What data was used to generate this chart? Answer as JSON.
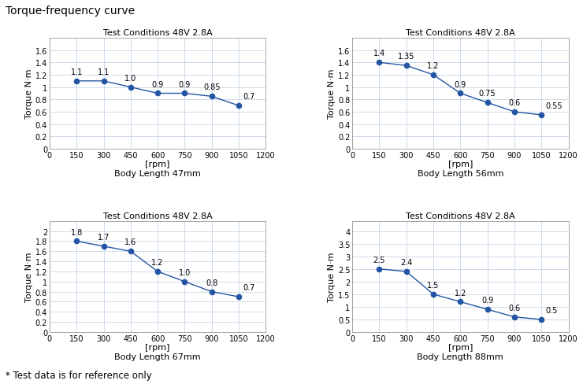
{
  "suptitle": "Torque-frequency curve",
  "line_color": "#2455a4",
  "marker_color": "#2455a4",
  "bg_color": "#ffffff",
  "grid_color": "#c8d4e8",
  "footnote": "* Test data is for reference only",
  "subplots": [
    {
      "title": "Test Conditions 48V 2.8A",
      "xlabel": "[rpm]",
      "xlabel2": "Body Length 47mm",
      "ylabel": "Torque N·m",
      "xlim": [
        0,
        1200
      ],
      "ylim": [
        0,
        1.8
      ],
      "yticks": [
        0,
        0.2,
        0.4,
        0.6,
        0.8,
        1.0,
        1.2,
        1.4,
        1.6
      ],
      "xticks": [
        0,
        150,
        300,
        450,
        600,
        750,
        900,
        1050,
        1200
      ],
      "x": [
        150,
        300,
        450,
        600,
        750,
        900,
        1050
      ],
      "y": [
        1.1,
        1.1,
        1.0,
        0.9,
        0.9,
        0.85,
        0.7
      ],
      "labels": [
        "1.1",
        "1.1",
        "1.0",
        "0.9",
        "0.9",
        "0.85",
        "0.7"
      ]
    },
    {
      "title": "Test Conditions 48V 2.8A",
      "xlabel": "[rpm]",
      "xlabel2": "Body Length 56mm",
      "ylabel": "Torque N·m",
      "xlim": [
        0,
        1200
      ],
      "ylim": [
        0,
        1.8
      ],
      "yticks": [
        0,
        0.2,
        0.4,
        0.6,
        0.8,
        1.0,
        1.2,
        1.4,
        1.6
      ],
      "xticks": [
        0,
        150,
        300,
        450,
        600,
        750,
        900,
        1050,
        1200
      ],
      "x": [
        150,
        300,
        450,
        600,
        750,
        900,
        1050
      ],
      "y": [
        1.4,
        1.35,
        1.2,
        0.9,
        0.75,
        0.6,
        0.55
      ],
      "labels": [
        "1.4",
        "1.35",
        "1.2",
        "0.9",
        "0.75",
        "0.6",
        "0.55"
      ]
    },
    {
      "title": "Test Conditions 48V 2.8A",
      "xlabel": "[rpm]",
      "xlabel2": "Body Length 67mm",
      "ylabel": "Torque N·m",
      "xlim": [
        0,
        1200
      ],
      "ylim": [
        0,
        2.2
      ],
      "yticks": [
        0,
        0.2,
        0.4,
        0.6,
        0.8,
        1.0,
        1.2,
        1.4,
        1.6,
        1.8,
        2.0
      ],
      "xticks": [
        0,
        150,
        300,
        450,
        600,
        750,
        900,
        1050,
        1200
      ],
      "x": [
        150,
        300,
        450,
        600,
        750,
        900,
        1050
      ],
      "y": [
        1.8,
        1.7,
        1.6,
        1.2,
        1.0,
        0.8,
        0.7
      ],
      "labels": [
        "1.8",
        "1.7",
        "1.6",
        "1.2",
        "1.0",
        "0.8",
        "0.7"
      ]
    },
    {
      "title": "Test Conditions 48V 2.8A",
      "xlabel": "[rpm]",
      "xlabel2": "Body Length 88mm",
      "ylabel": "Torque N·m",
      "xlim": [
        0,
        1200
      ],
      "ylim": [
        0,
        4.4
      ],
      "yticks": [
        0,
        0.5,
        1.0,
        1.5,
        2.0,
        2.5,
        3.0,
        3.5,
        4.0
      ],
      "xticks": [
        0,
        150,
        300,
        450,
        600,
        750,
        900,
        1050,
        1200
      ],
      "x": [
        150,
        300,
        450,
        600,
        750,
        900,
        1050
      ],
      "y": [
        2.5,
        2.4,
        1.5,
        1.2,
        0.9,
        0.6,
        0.5
      ],
      "labels": [
        "2.5",
        "2.4",
        "1.5",
        "1.2",
        "0.9",
        "0.6",
        "0.5"
      ]
    }
  ]
}
